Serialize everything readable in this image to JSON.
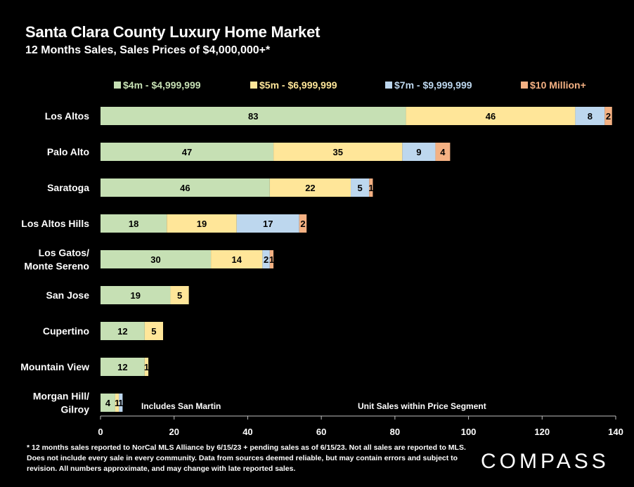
{
  "header": {
    "title": "Santa Clara County Luxury Home Market",
    "subtitle": "12 Months Sales, Sales Prices of $4,000,000+*"
  },
  "chart_data": {
    "type": "bar",
    "orientation": "horizontal",
    "stacked": true,
    "categories": [
      "Los Altos",
      "Palo Alto",
      "Saratoga",
      "Los Altos Hills",
      "Los Gatos/\nMonte Sereno",
      "San Jose",
      "Cupertino",
      "Mountain View",
      "Morgan Hill/\nGilroy"
    ],
    "series": [
      {
        "name": "$4m - $4,999,999",
        "color": "#c6e0b4",
        "values": [
          83,
          47,
          46,
          18,
          30,
          19,
          12,
          12,
          4
        ]
      },
      {
        "name": "$5m - $6,999,999",
        "color": "#ffe699",
        "values": [
          46,
          35,
          22,
          19,
          14,
          5,
          5,
          1,
          1
        ]
      },
      {
        "name": "$7m - $9,999,999",
        "color": "#bdd7ee",
        "values": [
          8,
          9,
          5,
          17,
          2,
          null,
          null,
          null,
          1
        ]
      },
      {
        "name": "$10 Million+",
        "color": "#f4b183",
        "values": [
          2,
          4,
          1,
          2,
          1,
          null,
          null,
          null,
          null
        ]
      }
    ],
    "xlim": [
      0,
      140
    ],
    "xticks": [
      0,
      20,
      40,
      60,
      80,
      100,
      120,
      140
    ],
    "legend": "top",
    "annotations": [
      "Includes San Martin",
      "Unit Sales within Price Segment"
    ]
  },
  "footnote": "* 12 months sales reported to NorCal MLS Alliance by 6/15/23 + pending sales as of 6/15/23. Not all sales are reported to MLS. Does not include every sale in every community. Data from sources deemed reliable, but may contain errors and subject to revision. All numbers approximate, and may change with late reported sales.",
  "brand": {
    "logo_text": "COMPASS"
  }
}
